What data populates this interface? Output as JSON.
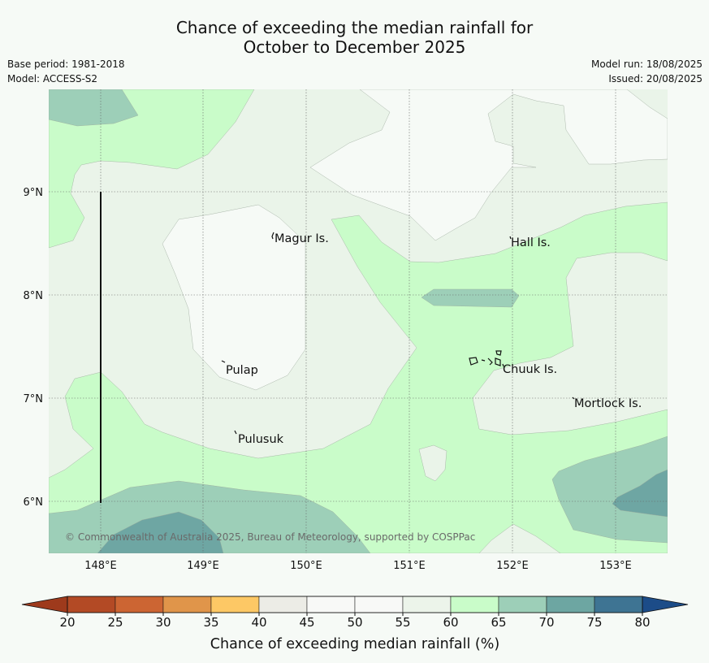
{
  "title_line1": "Chance of exceeding the median rainfall for",
  "title_line2": "October to December 2025",
  "base_period": "Base period: 1981-2018",
  "model": "Model: ACCESS-S2",
  "model_run": "Model run: 18/08/2025",
  "issued": "Issued: 20/08/2025",
  "copyright": "© Commonwealth of Australia 2025, Bureau of Meteorology, supported by COSPPac",
  "lat_labels": [
    "9°N",
    "8°N",
    "7°N",
    "6°N"
  ],
  "lon_labels": [
    "148°E",
    "149°E",
    "150°E",
    "151°E",
    "152°E",
    "153°E"
  ],
  "places": {
    "magur": "Magur Is.",
    "hall": "Hall Is.",
    "pulap": "Pulap",
    "chuuk": "Chuuk Is.",
    "mortlock": "Mortlock Is.",
    "pulusuk": "Pulusuk"
  },
  "colorbar": {
    "label": "Chance of exceeding median rainfall (%)",
    "ticks": [
      "20",
      "25",
      "30",
      "35",
      "40",
      "45",
      "50",
      "55",
      "60",
      "65",
      "70",
      "75",
      "80"
    ],
    "colors": [
      "#b34a25",
      "#cc6533",
      "#e0954a",
      "#fdc865",
      "#ececE6",
      "#f8f9f7",
      "#f8f9f7",
      "#ecf4ea",
      "#c9fcc9",
      "#9dcfb8",
      "#6da6a2",
      "#3e7493"
    ],
    "under_color": "#9e3a1c",
    "over_color": "#1c4c88"
  },
  "map_colors": {
    "c40_45": "#ececE6",
    "c45_55": "#f6faf6",
    "c55_60": "#eaf4e9",
    "c60_65": "#c9fcc9",
    "c65_70": "#9dcfb8",
    "c70_75": "#6ea6a3"
  }
}
